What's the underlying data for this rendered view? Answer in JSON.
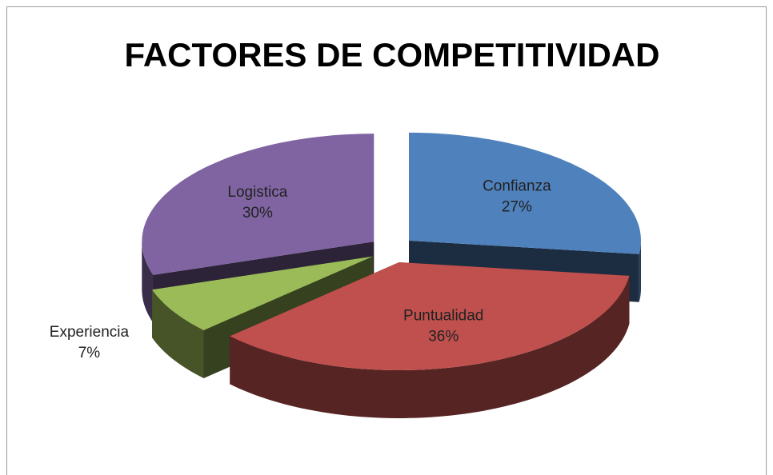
{
  "chart_data": {
    "type": "pie",
    "title": "FACTORES DE COMPETITIVIDAD",
    "categories": [
      "Confianza",
      "Puntualidad",
      "Experiencia",
      "Logistica"
    ],
    "values": [
      27,
      36,
      7,
      30
    ],
    "value_labels": [
      "27%",
      "36%",
      "7%",
      "30%"
    ],
    "colors": [
      "#4f81bd",
      "#c0504d",
      "#9bbb59",
      "#8064a2"
    ]
  }
}
